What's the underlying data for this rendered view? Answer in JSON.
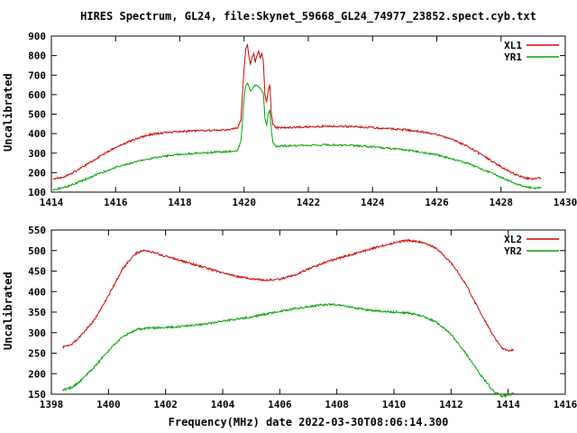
{
  "title": "HIRES Spectrum, GL24, file:Skynet_59668_GL24_74977_23852.spect.cyb.txt",
  "xlabel": "Frequency(MHz) date 2022-03-30T08:06:14.300",
  "colors": {
    "axis": "#000000",
    "text": "#000000",
    "background": "#ffffff"
  },
  "chart_data": [
    {
      "type": "line",
      "ylabel": "Uncalibrated",
      "xlim": [
        1414,
        1430
      ],
      "ylim": [
        100,
        900
      ],
      "xticks": [
        1414,
        1416,
        1418,
        1420,
        1422,
        1424,
        1426,
        1428,
        1430
      ],
      "yticks": [
        100,
        200,
        300,
        400,
        500,
        600,
        700,
        800,
        900
      ],
      "grid": false,
      "legend_position": "top-right",
      "series": [
        {
          "name": "XL1",
          "color": "#cc0000",
          "points": [
            [
              1414.05,
              170
            ],
            [
              1414.3,
              175
            ],
            [
              1414.6,
              192
            ],
            [
              1415.0,
              232
            ],
            [
              1415.5,
              282
            ],
            [
              1416.0,
              330
            ],
            [
              1416.5,
              365
            ],
            [
              1417.0,
              393
            ],
            [
              1417.5,
              405
            ],
            [
              1418.0,
              410
            ],
            [
              1418.5,
              414
            ],
            [
              1419.0,
              417
            ],
            [
              1419.5,
              420
            ],
            [
              1419.8,
              428
            ],
            [
              1419.9,
              470
            ],
            [
              1419.95,
              600
            ],
            [
              1420.0,
              730
            ],
            [
              1420.05,
              830
            ],
            [
              1420.1,
              858
            ],
            [
              1420.15,
              795
            ],
            [
              1420.2,
              755
            ],
            [
              1420.25,
              792
            ],
            [
              1420.3,
              812
            ],
            [
              1420.35,
              768
            ],
            [
              1420.4,
              800
            ],
            [
              1420.45,
              822
            ],
            [
              1420.5,
              788
            ],
            [
              1420.55,
              812
            ],
            [
              1420.6,
              775
            ],
            [
              1420.65,
              600
            ],
            [
              1420.7,
              560
            ],
            [
              1420.75,
              622
            ],
            [
              1420.8,
              648
            ],
            [
              1420.85,
              500
            ],
            [
              1420.9,
              445
            ],
            [
              1421.0,
              430
            ],
            [
              1421.5,
              432
            ],
            [
              1422.0,
              434
            ],
            [
              1422.5,
              437
            ],
            [
              1423.0,
              437
            ],
            [
              1423.5,
              435
            ],
            [
              1424.0,
              431
            ],
            [
              1424.5,
              426
            ],
            [
              1425.0,
              420
            ],
            [
              1425.5,
              411
            ],
            [
              1426.0,
              396
            ],
            [
              1426.5,
              370
            ],
            [
              1427.0,
              331
            ],
            [
              1427.5,
              281
            ],
            [
              1428.0,
              230
            ],
            [
              1428.5,
              186
            ],
            [
              1428.8,
              171
            ],
            [
              1429.0,
              167
            ],
            [
              1429.25,
              174
            ]
          ]
        },
        {
          "name": "YR1",
          "color": "#00a000",
          "points": [
            [
              1414.05,
              110
            ],
            [
              1414.5,
              130
            ],
            [
              1415.0,
              161
            ],
            [
              1415.5,
              196
            ],
            [
              1416.0,
              226
            ],
            [
              1416.5,
              250
            ],
            [
              1417.0,
              269
            ],
            [
              1417.5,
              284
            ],
            [
              1418.0,
              294
            ],
            [
              1418.5,
              300
            ],
            [
              1419.0,
              304
            ],
            [
              1419.5,
              308
            ],
            [
              1419.8,
              314
            ],
            [
              1419.9,
              360
            ],
            [
              1419.95,
              470
            ],
            [
              1420.0,
              575
            ],
            [
              1420.05,
              645
            ],
            [
              1420.1,
              660
            ],
            [
              1420.2,
              618
            ],
            [
              1420.3,
              642
            ],
            [
              1420.4,
              652
            ],
            [
              1420.5,
              630
            ],
            [
              1420.6,
              608
            ],
            [
              1420.65,
              480
            ],
            [
              1420.7,
              442
            ],
            [
              1420.75,
              498
            ],
            [
              1420.8,
              518
            ],
            [
              1420.85,
              420
            ],
            [
              1420.9,
              352
            ],
            [
              1421.0,
              336
            ],
            [
              1421.5,
              338
            ],
            [
              1422.0,
              340
            ],
            [
              1422.5,
              342
            ],
            [
              1423.0,
              341
            ],
            [
              1423.5,
              338
            ],
            [
              1424.0,
              332
            ],
            [
              1424.5,
              325
            ],
            [
              1425.0,
              316
            ],
            [
              1425.5,
              305
            ],
            [
              1426.0,
              291
            ],
            [
              1426.5,
              270
            ],
            [
              1427.0,
              246
            ],
            [
              1427.5,
              211
            ],
            [
              1428.0,
              176
            ],
            [
              1428.5,
              141
            ],
            [
              1428.8,
              126
            ],
            [
              1429.0,
              120
            ],
            [
              1429.25,
              126
            ]
          ]
        }
      ]
    },
    {
      "type": "line",
      "ylabel": "Uncalibrated",
      "xlim": [
        1398,
        1416
      ],
      "ylim": [
        150,
        550
      ],
      "xticks": [
        1398,
        1400,
        1402,
        1404,
        1406,
        1408,
        1410,
        1412,
        1414,
        1416
      ],
      "yticks": [
        150,
        200,
        250,
        300,
        350,
        400,
        450,
        500,
        550
      ],
      "grid": false,
      "legend_position": "top-right",
      "series": [
        {
          "name": "XL2",
          "color": "#cc0000",
          "points": [
            [
              1398.4,
              265
            ],
            [
              1398.7,
              271
            ],
            [
              1399.0,
              290
            ],
            [
              1399.5,
              331
            ],
            [
              1400.0,
              390
            ],
            [
              1400.5,
              456
            ],
            [
              1400.8,
              482
            ],
            [
              1401.0,
              495
            ],
            [
              1401.3,
              500
            ],
            [
              1401.6,
              495
            ],
            [
              1402.0,
              486
            ],
            [
              1402.5,
              476
            ],
            [
              1403.0,
              466
            ],
            [
              1403.5,
              456
            ],
            [
              1404.0,
              446
            ],
            [
              1404.5,
              437
            ],
            [
              1405.0,
              431
            ],
            [
              1405.5,
              428
            ],
            [
              1406.0,
              430
            ],
            [
              1406.5,
              440
            ],
            [
              1407.0,
              455
            ],
            [
              1407.5,
              469
            ],
            [
              1408.0,
              480
            ],
            [
              1408.5,
              490
            ],
            [
              1409.0,
              500
            ],
            [
              1409.5,
              510
            ],
            [
              1410.0,
              519
            ],
            [
              1410.5,
              525
            ],
            [
              1411.0,
              520
            ],
            [
              1411.5,
              505
            ],
            [
              1412.0,
              470
            ],
            [
              1412.5,
              420
            ],
            [
              1413.0,
              352
            ],
            [
              1413.5,
              290
            ],
            [
              1413.8,
              262
            ],
            [
              1414.0,
              255
            ],
            [
              1414.2,
              259
            ]
          ]
        },
        {
          "name": "YR2",
          "color": "#00a000",
          "points": [
            [
              1398.4,
              160
            ],
            [
              1398.7,
              166
            ],
            [
              1399.0,
              181
            ],
            [
              1399.5,
              216
            ],
            [
              1400.0,
              256
            ],
            [
              1400.5,
              291
            ],
            [
              1401.0,
              308
            ],
            [
              1401.5,
              312
            ],
            [
              1402.0,
              312
            ],
            [
              1402.5,
              315
            ],
            [
              1403.0,
              318
            ],
            [
              1403.5,
              322
            ],
            [
              1404.0,
              328
            ],
            [
              1404.5,
              333
            ],
            [
              1405.0,
              338
            ],
            [
              1405.5,
              345
            ],
            [
              1406.0,
              352
            ],
            [
              1406.5,
              358
            ],
            [
              1407.0,
              363
            ],
            [
              1407.5,
              368
            ],
            [
              1408.0,
              368
            ],
            [
              1408.5,
              362
            ],
            [
              1409.0,
              356
            ],
            [
              1409.5,
              352
            ],
            [
              1410.0,
              350
            ],
            [
              1410.5,
              348
            ],
            [
              1411.0,
              340
            ],
            [
              1411.5,
              325
            ],
            [
              1412.0,
              296
            ],
            [
              1412.5,
              251
            ],
            [
              1413.0,
              200
            ],
            [
              1413.5,
              156
            ],
            [
              1413.8,
              145
            ],
            [
              1414.0,
              148
            ],
            [
              1414.2,
              153
            ]
          ]
        }
      ]
    }
  ]
}
